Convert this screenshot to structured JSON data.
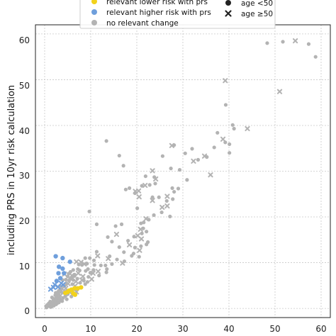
{
  "chart_data": {
    "type": "scatter",
    "title": "",
    "xlabel": "",
    "ylabel": "including PRS in 10yr risk calculation",
    "xlim": [
      -2,
      62
    ],
    "ylim": [
      -2,
      62
    ],
    "x_ticks": [
      "0",
      "10",
      "20",
      "30",
      "40",
      "50",
      "60"
    ],
    "y_ticks": [
      "0",
      "10",
      "20",
      "30",
      "40",
      "50",
      "60"
    ],
    "grid": true,
    "legend_position": "top",
    "legend": {
      "colors": [
        {
          "label": "relevant lower risk with prs",
          "color": "#f2d21b"
        },
        {
          "label": "relevant higher risk with prs",
          "color": "#6f9fdc"
        },
        {
          "label": "no relevant change",
          "color": "#b3b3b3"
        }
      ],
      "shapes": [
        {
          "label": "age <50",
          "marker": "circle"
        },
        {
          "label": "age ≥50",
          "marker": "x"
        }
      ]
    },
    "series": [
      {
        "name": "no relevant change",
        "color": "#b3b3b3",
        "points": [
          [
            57.3,
            57.8,
            "o"
          ],
          [
            58.8,
            55.0,
            "o"
          ],
          [
            54.4,
            58.5,
            "x"
          ],
          [
            51.7,
            58.3,
            "o"
          ],
          [
            48.3,
            58.0,
            "o"
          ],
          [
            51.0,
            47.4,
            "x"
          ],
          [
            39.2,
            49.8,
            "x"
          ],
          [
            39.3,
            44.5,
            "o"
          ],
          [
            40.8,
            40.1,
            "o"
          ],
          [
            37.5,
            38.4,
            "o"
          ],
          [
            38.7,
            37.0,
            "x"
          ],
          [
            39.2,
            36.3,
            "o"
          ],
          [
            44.0,
            39.3,
            "x"
          ],
          [
            41.1,
            39.3,
            "o"
          ],
          [
            40.1,
            35.9,
            "o"
          ],
          [
            40.1,
            34.0,
            "o"
          ],
          [
            36.8,
            35.2,
            "o"
          ],
          [
            35.2,
            33.1,
            "o"
          ],
          [
            34.7,
            33.3,
            "x"
          ],
          [
            33.3,
            32.5,
            "o"
          ],
          [
            32.3,
            32.2,
            "x"
          ],
          [
            36.0,
            29.2,
            "x"
          ],
          [
            32.0,
            34.9,
            "o"
          ],
          [
            30.5,
            33.9,
            "o"
          ],
          [
            30.9,
            28.1,
            "o"
          ],
          [
            29.0,
            26.2,
            "o"
          ],
          [
            28.1,
            25.5,
            "o"
          ],
          [
            27.7,
            26.3,
            "o"
          ],
          [
            26.6,
            24.5,
            "x"
          ],
          [
            27.8,
            23.9,
            "o"
          ],
          [
            26.5,
            23.5,
            "o"
          ],
          [
            25.5,
            22.1,
            "x"
          ],
          [
            27.2,
            20.1,
            "o"
          ],
          [
            26.6,
            22.4,
            "x"
          ],
          [
            25.4,
            21.0,
            "o"
          ],
          [
            23.4,
            23.6,
            "x"
          ],
          [
            24.0,
            27.3,
            "o"
          ],
          [
            23.8,
            28.7,
            "o"
          ],
          [
            24.1,
            28.3,
            "x"
          ],
          [
            25.6,
            33.3,
            "o"
          ],
          [
            27.6,
            35.6,
            "x"
          ],
          [
            28.1,
            35.7,
            "o"
          ],
          [
            13.4,
            36.6,
            "o"
          ],
          [
            16.2,
            33.4,
            "o"
          ],
          [
            17.1,
            31.2,
            "o"
          ],
          [
            23.4,
            30.1,
            "x"
          ],
          [
            27.4,
            30.6,
            "o"
          ],
          [
            29.3,
            30.3,
            "o"
          ],
          [
            21.9,
            28.9,
            "o"
          ],
          [
            22.8,
            27.0,
            "o"
          ],
          [
            21.8,
            26.9,
            "x"
          ],
          [
            21.1,
            26.8,
            "o"
          ],
          [
            20.4,
            25.7,
            "x"
          ],
          [
            19.7,
            25.6,
            "x"
          ],
          [
            19.6,
            25.2,
            "o"
          ],
          [
            18.4,
            26.3,
            "o"
          ],
          [
            17.6,
            26.0,
            "o"
          ],
          [
            23.4,
            24.3,
            "o"
          ],
          [
            24.8,
            24.3,
            "o"
          ],
          [
            20.5,
            24.4,
            "x"
          ],
          [
            20.1,
            21.9,
            "o"
          ],
          [
            23.7,
            20.4,
            "o"
          ],
          [
            22.0,
            19.6,
            "x"
          ],
          [
            22.6,
            19.4,
            "o"
          ],
          [
            21.5,
            18.8,
            "o"
          ],
          [
            20.9,
            18.6,
            "o"
          ],
          [
            21.4,
            17.5,
            "o"
          ],
          [
            20.8,
            17.3,
            "x"
          ],
          [
            22.1,
            16.8,
            "o"
          ],
          [
            21.1,
            16.4,
            "o"
          ],
          [
            20.2,
            15.9,
            "x"
          ],
          [
            19.4,
            15.7,
            "o"
          ],
          [
            21.0,
            15.2,
            "x"
          ],
          [
            22.4,
            14.5,
            "o"
          ],
          [
            22.1,
            14.0,
            "o"
          ],
          [
            20.9,
            13.6,
            "o"
          ],
          [
            19.6,
            13.3,
            "o"
          ],
          [
            18.1,
            14.8,
            "o"
          ],
          [
            16.7,
            18.4,
            "o"
          ],
          [
            15.4,
            18.0,
            "o"
          ],
          [
            13.7,
            15.6,
            "o"
          ],
          [
            14.6,
            14.6,
            "o"
          ],
          [
            15.6,
            16.2,
            "x"
          ],
          [
            16.2,
            13.4,
            "o"
          ],
          [
            17.2,
            12.3,
            "o"
          ],
          [
            18.4,
            13.9,
            "x"
          ],
          [
            18.9,
            11.5,
            "o"
          ],
          [
            19.3,
            12.0,
            "o"
          ],
          [
            20.5,
            11.3,
            "o"
          ],
          [
            20.6,
            12.7,
            "x"
          ],
          [
            17.3,
            10.3,
            "o"
          ],
          [
            16.9,
            9.9,
            "x"
          ],
          [
            15.7,
            10.7,
            "o"
          ],
          [
            14.1,
            11.4,
            "o"
          ],
          [
            13.8,
            10.9,
            "x"
          ],
          [
            14.6,
            9.7,
            "o"
          ],
          [
            13.2,
            9.4,
            "o"
          ],
          [
            13.5,
            8.6,
            "o"
          ],
          [
            12.2,
            9.4,
            "o"
          ],
          [
            11.6,
            8.1,
            "x"
          ],
          [
            13.4,
            7.9,
            "o"
          ],
          [
            11.8,
            7.2,
            "o"
          ],
          [
            10.6,
            8.4,
            "o"
          ],
          [
            10.8,
            9.5,
            "o"
          ],
          [
            11.3,
            12.4,
            "o"
          ],
          [
            11.5,
            11.5,
            "x"
          ],
          [
            9.8,
            11.0,
            "o"
          ],
          [
            10.5,
            7.7,
            "x"
          ],
          [
            9.9,
            7.8,
            "o"
          ],
          [
            9.5,
            6.9,
            "o"
          ],
          [
            10.2,
            6.4,
            "x"
          ],
          [
            9.3,
            5.8,
            "o"
          ],
          [
            8.3,
            7.0,
            "x"
          ],
          [
            8.5,
            6.1,
            "o"
          ],
          [
            9.7,
            21.2,
            "o"
          ],
          [
            11.3,
            18.4,
            "o"
          ],
          [
            10.7,
            10.5,
            "o"
          ],
          [
            9.2,
            9.8,
            "o"
          ],
          [
            8.6,
            9.7,
            "x"
          ],
          [
            8.8,
            11.0,
            "o"
          ],
          [
            7.9,
            10.1,
            "x"
          ],
          [
            8.1,
            9.5,
            "o"
          ],
          [
            7.6,
            8.3,
            "o"
          ],
          [
            7.3,
            7.7,
            "x"
          ],
          [
            7.4,
            9.6,
            "o"
          ],
          [
            6.9,
            10.2,
            "x"
          ],
          [
            7.7,
            5.6,
            "o"
          ],
          [
            8.1,
            6.2,
            "x"
          ],
          [
            8.8,
            5.3,
            "o"
          ],
          [
            7.1,
            6.5,
            "o"
          ],
          [
            6.8,
            5.9,
            "x"
          ],
          [
            6.5,
            7.1,
            "o"
          ],
          [
            6.2,
            6.2,
            "o"
          ],
          [
            6.6,
            4.9,
            "x"
          ],
          [
            7.0,
            4.1,
            "o"
          ],
          [
            6.0,
            5.3,
            "o"
          ],
          [
            5.9,
            7.2,
            "x"
          ],
          [
            5.5,
            6.4,
            "o"
          ],
          [
            5.2,
            7.6,
            "o"
          ],
          [
            5.1,
            5.4,
            "x"
          ],
          [
            4.6,
            6.3,
            "o"
          ],
          [
            4.3,
            5.0,
            "o"
          ],
          [
            4.6,
            4.4,
            "x"
          ],
          [
            5.2,
            3.9,
            "o"
          ],
          [
            4.9,
            3.4,
            "o"
          ],
          [
            4.2,
            3.4,
            "o"
          ],
          [
            3.8,
            4.3,
            "x"
          ],
          [
            3.6,
            3.6,
            "o"
          ],
          [
            3.3,
            4.9,
            "o"
          ],
          [
            3.1,
            3.9,
            "o"
          ],
          [
            3.4,
            2.8,
            "x"
          ],
          [
            3.0,
            3.1,
            "o"
          ],
          [
            2.7,
            2.5,
            "o"
          ],
          [
            2.4,
            3.4,
            "o"
          ],
          [
            2.9,
            2.0,
            "x"
          ],
          [
            2.2,
            2.1,
            "o"
          ],
          [
            2.6,
            1.7,
            "o"
          ],
          [
            2.1,
            1.4,
            "o"
          ],
          [
            1.8,
            1.9,
            "x"
          ],
          [
            1.6,
            1.3,
            "o"
          ],
          [
            1.9,
            1.0,
            "o"
          ],
          [
            1.4,
            0.9,
            "o"
          ],
          [
            1.2,
            1.5,
            "o"
          ],
          [
            1.1,
            0.7,
            "o"
          ],
          [
            0.9,
            1.1,
            "o"
          ],
          [
            0.8,
            0.5,
            "o"
          ],
          [
            0.6,
            0.8,
            "o"
          ],
          [
            0.5,
            0.4,
            "o"
          ],
          [
            0.4,
            0.2,
            "o"
          ],
          [
            0.3,
            0.5,
            "o"
          ],
          [
            1.5,
            0.4,
            "o"
          ],
          [
            2.0,
            0.6,
            "o"
          ],
          [
            2.5,
            0.9,
            "o"
          ],
          [
            3.1,
            1.3,
            "o"
          ],
          [
            3.6,
            1.8,
            "o"
          ],
          [
            4.0,
            2.3,
            "o"
          ],
          [
            4.5,
            2.7,
            "o"
          ],
          [
            5.0,
            3.1,
            "o"
          ],
          [
            5.5,
            3.5,
            "x"
          ],
          [
            6.0,
            3.9,
            "o"
          ],
          [
            6.4,
            4.3,
            "o"
          ],
          [
            5.8,
            2.6,
            "o"
          ],
          [
            4.8,
            2.0,
            "o"
          ],
          [
            3.8,
            1.6,
            "o"
          ],
          [
            2.8,
            1.2,
            "o"
          ],
          [
            1.6,
            2.4,
            "o"
          ],
          [
            2.3,
            2.9,
            "o"
          ],
          [
            2.9,
            3.6,
            "o"
          ],
          [
            3.5,
            4.2,
            "o"
          ],
          [
            4.1,
            4.8,
            "o"
          ],
          [
            4.7,
            5.5,
            "o"
          ],
          [
            5.3,
            6.1,
            "o"
          ],
          [
            5.9,
            6.7,
            "o"
          ],
          [
            6.5,
            7.4,
            "o"
          ],
          [
            4.4,
            3.7,
            "x"
          ],
          [
            3.2,
            2.2,
            "o"
          ],
          [
            2.4,
            1.1,
            "o"
          ],
          [
            1.3,
            0.3,
            "o"
          ],
          [
            6.2,
            8.4,
            "o"
          ],
          [
            7.2,
            8.6,
            "o"
          ],
          [
            5.0,
            7.0,
            "o"
          ],
          [
            5.6,
            8.0,
            "o"
          ],
          [
            6.9,
            3.6,
            "x"
          ],
          [
            7.9,
            4.6,
            "o"
          ],
          [
            8.9,
            8.2,
            "o"
          ],
          [
            9.4,
            8.6,
            "o"
          ],
          [
            3.9,
            6.2,
            "o"
          ],
          [
            4.3,
            7.5,
            "x"
          ]
        ]
      },
      {
        "name": "relevant higher risk with prs",
        "color": "#6f9fdc",
        "points": [
          [
            2.4,
            11.4,
            "o"
          ],
          [
            3.9,
            11.0,
            "o"
          ],
          [
            5.5,
            10.2,
            "o"
          ],
          [
            3.1,
            9.1,
            "o"
          ],
          [
            3.9,
            8.7,
            "o"
          ],
          [
            4.2,
            7.7,
            "o"
          ],
          [
            3.0,
            7.7,
            "o"
          ],
          [
            3.4,
            6.6,
            "o"
          ],
          [
            2.6,
            6.0,
            "o"
          ],
          [
            3.6,
            5.5,
            "x"
          ],
          [
            2.2,
            5.2,
            "x"
          ],
          [
            4.0,
            5.2,
            "x"
          ],
          [
            2.9,
            4.7,
            "x"
          ],
          [
            1.9,
            4.6,
            "x"
          ],
          [
            1.3,
            4.2,
            "x"
          ]
        ]
      },
      {
        "name": "relevant lower risk with prs",
        "color": "#f2d21b",
        "points": [
          [
            7.9,
            4.6,
            "o"
          ],
          [
            7.2,
            4.4,
            "o"
          ],
          [
            6.5,
            4.4,
            "o"
          ],
          [
            6.2,
            3.3,
            "o"
          ],
          [
            5.8,
            4.1,
            "o"
          ],
          [
            5.3,
            3.9,
            "o"
          ],
          [
            5.0,
            3.6,
            "o"
          ],
          [
            4.5,
            3.4,
            "o"
          ],
          [
            6.6,
            3.0,
            "o"
          ]
        ]
      }
    ]
  }
}
